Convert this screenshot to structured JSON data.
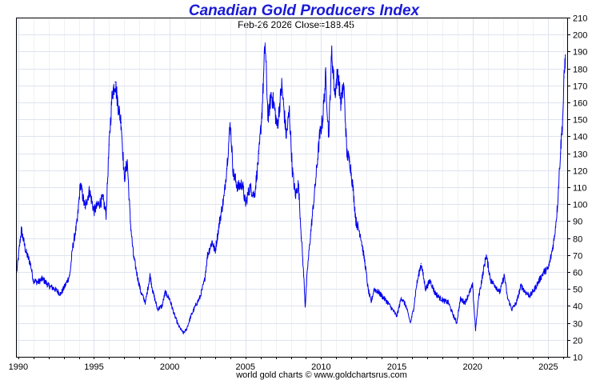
{
  "chart_data": {
    "type": "line",
    "title": "Canadian Gold Producers Index",
    "subtitle": "Feb-26  2026   Close=188.45",
    "footer": "world gold charts © www.goldchartsrus.com",
    "xlabel": "",
    "ylabel": "",
    "xlim": [
      1989.85,
      2026.25
    ],
    "ylim": [
      10,
      210
    ],
    "y_ticks": [
      10,
      20,
      30,
      40,
      50,
      60,
      70,
      80,
      90,
      100,
      110,
      120,
      130,
      140,
      150,
      160,
      170,
      180,
      190,
      200,
      210
    ],
    "x_ticks": [
      1990,
      1995,
      2000,
      2005,
      2010,
      2015,
      2020,
      2025
    ],
    "x_tick_labels": [
      "1990",
      "1995",
      "2000",
      "2005",
      "2010",
      "2015",
      "2020",
      "2025"
    ],
    "grid": true,
    "series": [
      {
        "name": "Canadian Gold Producers Index",
        "color": "#0000ee",
        "x": [
          1989.9,
          1990.2,
          1990.5,
          1990.8,
          1991.0,
          1991.3,
          1991.6,
          1992.0,
          1992.4,
          1992.8,
          1993.1,
          1993.4,
          1993.6,
          1993.9,
          1994.1,
          1994.4,
          1994.7,
          1995.0,
          1995.3,
          1995.6,
          1995.8,
          1996.0,
          1996.2,
          1996.4,
          1996.6,
          1996.8,
          1997.0,
          1997.2,
          1997.4,
          1997.6,
          1997.9,
          1998.1,
          1998.4,
          1998.7,
          1998.9,
          1999.2,
          1999.5,
          1999.7,
          2000.0,
          2000.3,
          2000.6,
          2000.9,
          2001.1,
          2001.4,
          2001.7,
          2002.0,
          2002.3,
          2002.5,
          2002.8,
          2003.0,
          2003.3,
          2003.6,
          2003.8,
          2004.0,
          2004.2,
          2004.5,
          2004.8,
          2005.0,
          2005.3,
          2005.6,
          2005.9,
          2006.1,
          2006.3,
          2006.5,
          2006.7,
          2006.9,
          2007.1,
          2007.4,
          2007.7,
          2007.9,
          2008.1,
          2008.3,
          2008.5,
          2008.7,
          2008.85,
          2008.95,
          2009.1,
          2009.3,
          2009.6,
          2009.9,
          2010.1,
          2010.3,
          2010.5,
          2010.7,
          2010.9,
          2011.1,
          2011.3,
          2011.5,
          2011.7,
          2011.9,
          2012.1,
          2012.3,
          2012.6,
          2012.9,
          2013.1,
          2013.3,
          2013.5,
          2013.8,
          2014.1,
          2014.4,
          2014.7,
          2015.0,
          2015.3,
          2015.6,
          2015.9,
          2016.1,
          2016.3,
          2016.6,
          2016.9,
          2017.2,
          2017.5,
          2017.8,
          2018.1,
          2018.4,
          2018.7,
          2018.95,
          2019.2,
          2019.5,
          2019.8,
          2020.0,
          2020.2,
          2020.4,
          2020.6,
          2020.9,
          2021.2,
          2021.5,
          2021.8,
          2022.1,
          2022.3,
          2022.6,
          2022.9,
          2023.2,
          2023.5,
          2023.8,
          2024.1,
          2024.4,
          2024.7,
          2025.0,
          2025.2,
          2025.4,
          2025.6,
          2025.8,
          2025.95,
          2026.05,
          2026.13
        ],
        "values": [
          60,
          85,
          72,
          65,
          55,
          54,
          56,
          52,
          50,
          47,
          52,
          58,
          75,
          90,
          112,
          98,
          108,
          96,
          100,
          103,
          94,
          135,
          165,
          172,
          158,
          148,
          115,
          125,
          90,
          70,
          56,
          48,
          42,
          58,
          48,
          38,
          40,
          48,
          44,
          35,
          28,
          24,
          26,
          34,
          40,
          45,
          55,
          70,
          78,
          72,
          90,
          105,
          125,
          148,
          118,
          110,
          112,
          100,
          110,
          105,
          130,
          155,
          195,
          150,
          165,
          158,
          145,
          170,
          140,
          155,
          120,
          105,
          112,
          80,
          58,
          40,
          62,
          82,
          110,
          140,
          150,
          175,
          140,
          190,
          165,
          178,
          160,
          170,
          130,
          125,
          110,
          90,
          82,
          65,
          50,
          42,
          50,
          48,
          45,
          42,
          38,
          34,
          45,
          40,
          30,
          38,
          52,
          65,
          50,
          55,
          48,
          45,
          43,
          42,
          35,
          30,
          44,
          42,
          48,
          52,
          26,
          45,
          55,
          70,
          55,
          52,
          48,
          58,
          45,
          38,
          42,
          52,
          48,
          46,
          50,
          55,
          60,
          62,
          70,
          80,
          98,
          130,
          150,
          175,
          188
        ]
      }
    ]
  }
}
